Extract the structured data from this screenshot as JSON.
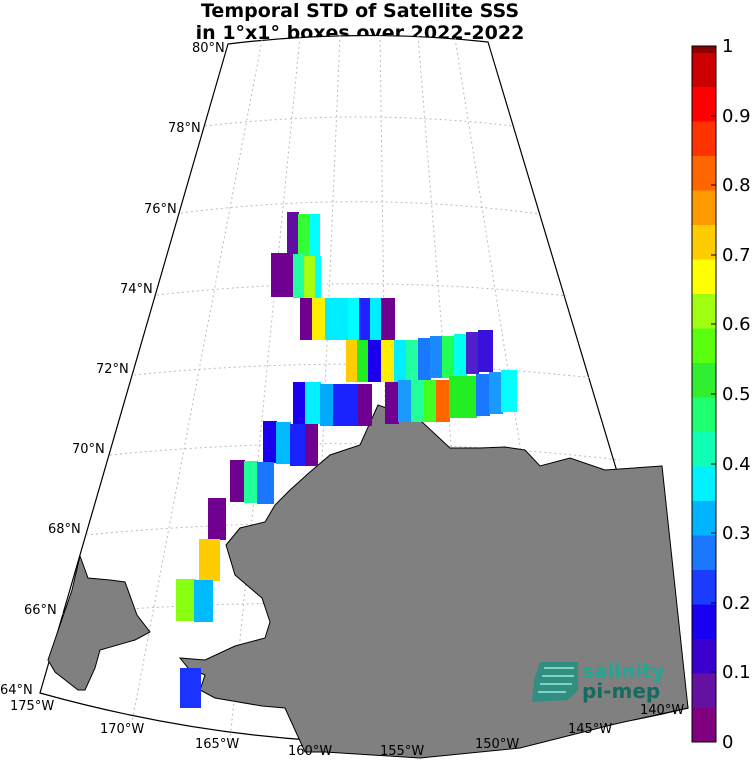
{
  "title": {
    "line1": "Temporal STD of Satellite SSS",
    "line2": "in 1°x1° boxes over 2022-2022"
  },
  "map": {
    "lat_labels": [
      "80°N",
      "78°N",
      "76°N",
      "74°N",
      "72°N",
      "70°N",
      "68°N",
      "66°N",
      "64°N"
    ],
    "lon_labels": [
      "175°W",
      "170°W",
      "165°W",
      "160°W",
      "155°W",
      "150°W",
      "145°W",
      "140°W"
    ],
    "land_color": "#808080",
    "grid_style": "dotted"
  },
  "colorbar": {
    "ticks": [
      "0",
      "0.1",
      "0.2",
      "0.3",
      "0.4",
      "0.5",
      "0.6",
      "0.7",
      "0.8",
      "0.9",
      "1"
    ],
    "range": [
      0,
      1
    ],
    "colormap": "jet-like (purple→blue→cyan→green→yellow→orange→red→dark red)"
  },
  "logo": {
    "line1": "salinity",
    "line2": "pi-mep",
    "color": "#1a9e8e"
  }
}
